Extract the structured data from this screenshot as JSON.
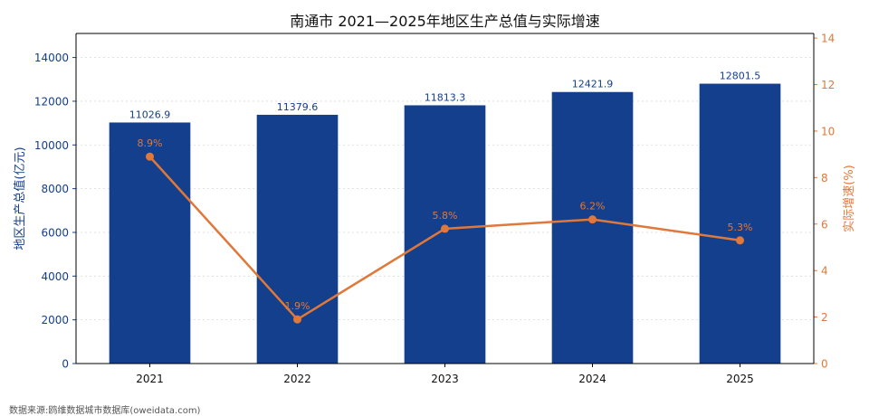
{
  "chart_data": {
    "type": "bar",
    "title": "南通市 2021—2025年地区生产总值与实际增速",
    "categories": [
      "2021",
      "2022",
      "2023",
      "2024",
      "2025"
    ],
    "series": [
      {
        "name": "地区生产总值(亿元)",
        "type": "bar",
        "axis": "left",
        "values": [
          11026.9,
          11379.6,
          11813.3,
          12421.9,
          12801.5
        ],
        "labels": [
          "11026.9",
          "11379.6",
          "11813.3",
          "12421.9",
          "12801.5"
        ],
        "color": "#143f8c"
      },
      {
        "name": "实际增速(%)",
        "type": "line",
        "axis": "right",
        "values": [
          8.9,
          1.9,
          5.8,
          6.2,
          5.3
        ],
        "labels": [
          "8.9%",
          "1.9%",
          "5.8%",
          "6.2%",
          "5.3%"
        ],
        "color": "#e0783a"
      }
    ],
    "ylabel_left": "地区生产总值(亿元)",
    "ylabel_right": "实际增速(%)",
    "ylim_left": [
      0,
      15100
    ],
    "ylim_right": [
      0,
      14.2
    ],
    "yticks_left": [
      "0",
      "2000",
      "4000",
      "6000",
      "8000",
      "10000",
      "12000",
      "14000"
    ],
    "yticks_right": [
      "0",
      "2",
      "4",
      "6",
      "8",
      "10",
      "12",
      "14"
    ],
    "grid": true
  },
  "footnote": "数据来源:鸥维数据城市数据库(oweidata.com)"
}
